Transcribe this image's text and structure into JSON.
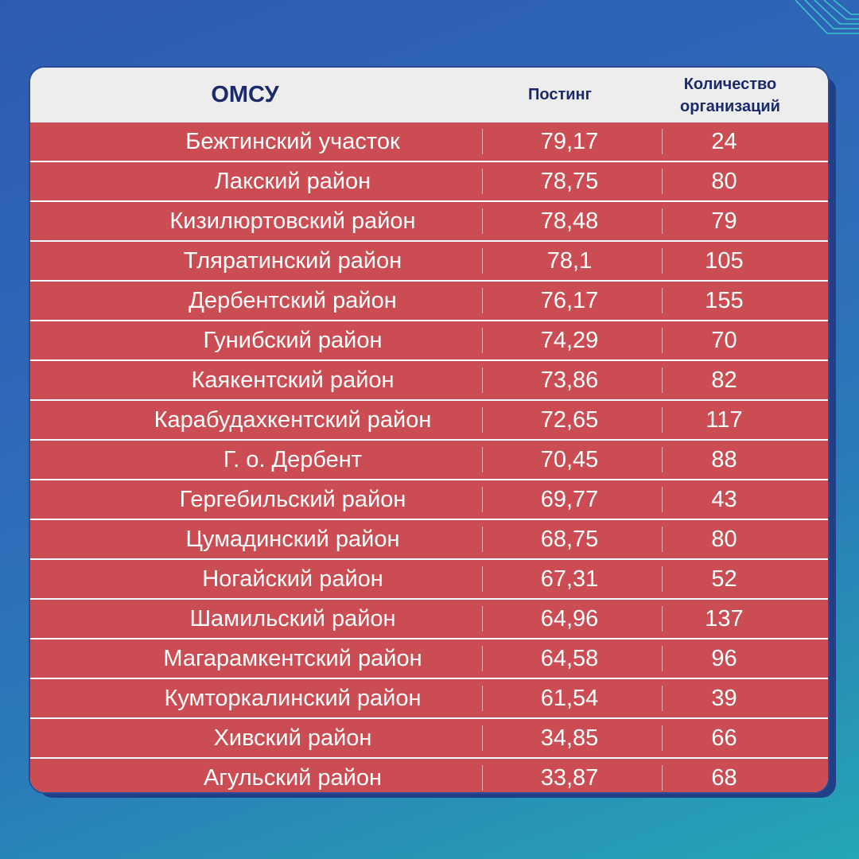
{
  "table": {
    "headers": {
      "omsu": "ОМСУ",
      "posting": "Постинг",
      "count": "Количество\nорганизаций"
    },
    "rows": [
      {
        "name": "Бежтинский участок",
        "posting": "79,17",
        "count": "24"
      },
      {
        "name": "Лакский район",
        "posting": "78,75",
        "count": "80"
      },
      {
        "name": "Кизилюртовский район",
        "posting": "78,48",
        "count": "79"
      },
      {
        "name": "Тляратинский район",
        "posting": "78,1",
        "count": "105"
      },
      {
        "name": "Дербентский район",
        "posting": "76,17",
        "count": "155"
      },
      {
        "name": "Гунибский район",
        "posting": "74,29",
        "count": "70"
      },
      {
        "name": "Каякентский район",
        "posting": "73,86",
        "count": "82"
      },
      {
        "name": "Карабудахкентский район",
        "posting": "72,65",
        "count": "117"
      },
      {
        "name": "Г. о. Дербент",
        "posting": "70,45",
        "count": "88"
      },
      {
        "name": "Гергебильский район",
        "posting": "69,77",
        "count": "43"
      },
      {
        "name": "Цумадинский район",
        "posting": "68,75",
        "count": "80"
      },
      {
        "name": "Ногайский район",
        "posting": "67,31",
        "count": "52"
      },
      {
        "name": "Шамильский район",
        "posting": "64,96",
        "count": "137"
      },
      {
        "name": "Магарамкентский район",
        "posting": "64,58",
        "count": "96"
      },
      {
        "name": "Кумторкалинский район",
        "posting": "61,54",
        "count": "39"
      },
      {
        "name": "Хивский район",
        "posting": "34,85",
        "count": "66"
      },
      {
        "name": "Агульский район",
        "posting": "33,87",
        "count": "68"
      }
    ]
  },
  "colors": {
    "background_top": "#2d5bb0",
    "background_bottom": "#25a6b5",
    "header_bg": "#ededed",
    "header_text": "#1b2a6b",
    "row_bg": "#cb4d53",
    "row_text": "#ffffff"
  }
}
